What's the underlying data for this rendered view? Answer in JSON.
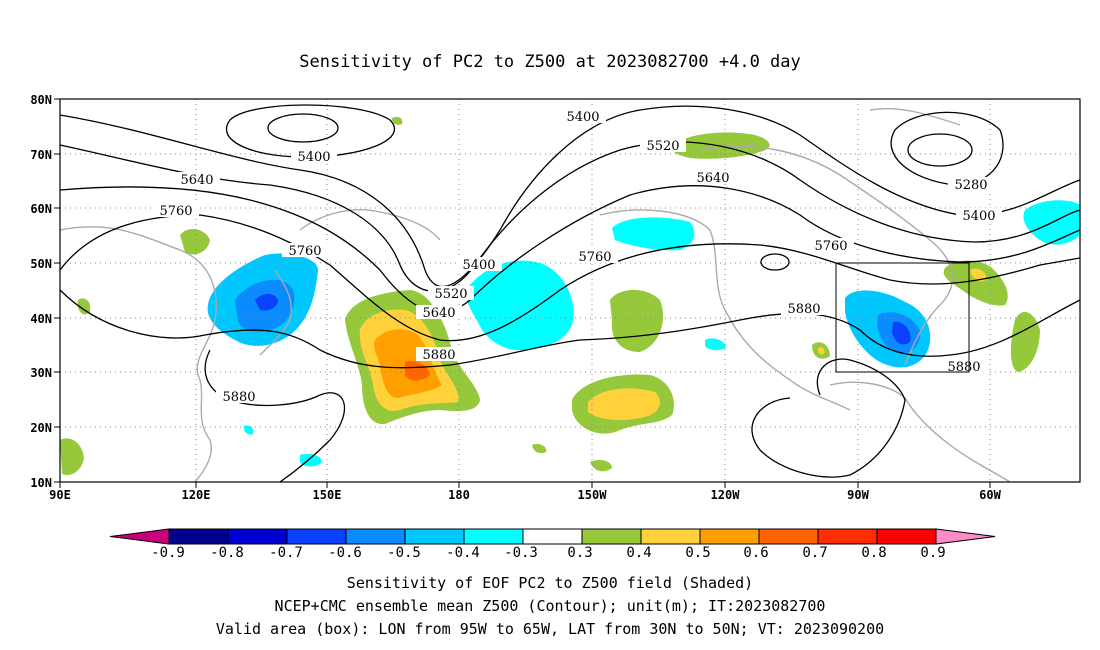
{
  "title": "Sensitivity of PC2 to Z500 at 2023082700 +4.0 day",
  "map": {
    "lon_labels": [
      "90E",
      "120E",
      "150E",
      "180",
      "150W",
      "120W",
      "90W",
      "60W"
    ],
    "lat_labels": [
      "80N",
      "70N",
      "60N",
      "50N",
      "40N",
      "30N",
      "20N",
      "10N"
    ],
    "contour_labels": [
      "5400",
      "5400",
      "5520",
      "5640",
      "5280",
      "5400",
      "5640",
      "5760",
      "5760",
      "5400",
      "5520",
      "5640",
      "5880",
      "5760",
      "5880",
      "5880",
      "5760",
      "5880"
    ],
    "valid_box": {
      "lon_from": "95W",
      "lon_to": "65W",
      "lat_from": "30N",
      "lat_to": "50N"
    }
  },
  "colorbar": {
    "labels": [
      "-0.9",
      "-0.8",
      "-0.7",
      "-0.6",
      "-0.5",
      "-0.4",
      "-0.3",
      "0.3",
      "0.4",
      "0.5",
      "0.6",
      "0.7",
      "0.8",
      "0.9"
    ],
    "colors": [
      "#c8007e",
      "#00008c",
      "#0000d2",
      "#0a41ff",
      "#0a8cff",
      "#00c8ff",
      "#00ffff",
      "#ffffff",
      "#96c83c",
      "#ffd23c",
      "#ffa000",
      "#ff6400",
      "#ff2d00",
      "#ff0000",
      "#ff8cc8"
    ]
  },
  "footer": {
    "line1": "Sensitivity of EOF PC2 to Z500 field (Shaded)",
    "line2": "NCEP+CMC ensemble mean Z500 (Contour); unit(m); IT:2023082700",
    "line3": "Valid area (box): LON from 95W to 65W, LAT from 30N to 50N; VT: 2023090200"
  }
}
